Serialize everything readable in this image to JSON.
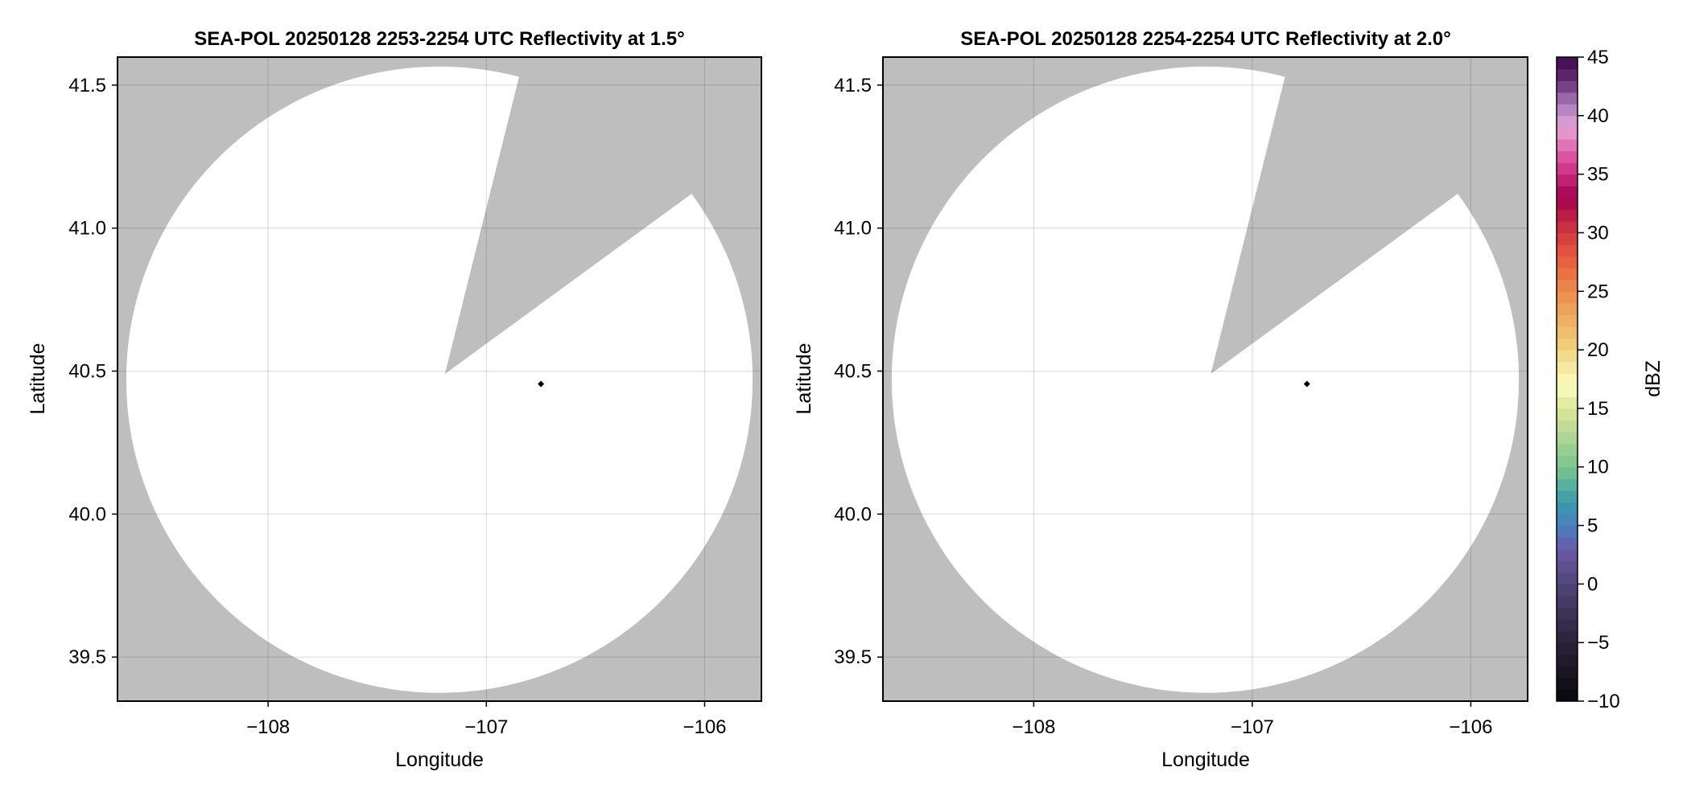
{
  "chart_data": [
    {
      "type": "heatmap",
      "title": "SEA-POL 20250128 2253-2254 UTC Reflectivity at 1.5°",
      "xlabel": "Longitude",
      "ylabel": "Latitude",
      "xlim": [
        -108.69,
        -105.74
      ],
      "ylim": [
        39.346,
        41.598
      ],
      "xticks": [
        -108,
        -107,
        -106
      ],
      "xtick_labels": [
        "−108",
        "−107",
        "−106"
      ],
      "yticks": [
        39.5,
        40.0,
        40.5,
        41.0,
        41.5
      ],
      "ytick_labels": [
        "39.5",
        "40.0",
        "40.5",
        "41.0",
        "41.5"
      ],
      "grid": true,
      "background_color": "#bebebe",
      "coverage_color": "#ffffff",
      "radar_center": [
        -107.2,
        40.47
      ],
      "coverage_extent_lon": [
        -108.65,
        -105.78
      ],
      "coverage_extent_lat": [
        39.375,
        41.565
      ],
      "blocked_sector": {
        "vertex": [
          -107.19,
          40.49
        ],
        "edge1": [
          -106.85,
          41.53
        ],
        "edge2": [
          -106.06,
          41.12
        ]
      },
      "marker": {
        "lon": -106.75,
        "lat": 40.455,
        "color": "#000000"
      }
    },
    {
      "type": "heatmap",
      "title": "SEA-POL 20250128 2254-2254 UTC Reflectivity at 2.0°",
      "xlabel": "Longitude",
      "ylabel": "Latitude",
      "xlim": [
        -108.69,
        -105.74
      ],
      "ylim": [
        39.346,
        41.598
      ],
      "xticks": [
        -108,
        -107,
        -106
      ],
      "xtick_labels": [
        "−108",
        "−107",
        "−106"
      ],
      "yticks": [
        39.5,
        40.0,
        40.5,
        41.0,
        41.5
      ],
      "ytick_labels": [
        "39.5",
        "40.0",
        "40.5",
        "41.0",
        "41.5"
      ],
      "grid": true,
      "background_color": "#bebebe",
      "coverage_color": "#ffffff",
      "radar_center": [
        -107.2,
        40.47
      ],
      "coverage_extent_lon": [
        -108.65,
        -105.78
      ],
      "coverage_extent_lat": [
        39.375,
        41.565
      ],
      "blocked_sector": {
        "vertex": [
          -107.19,
          40.49
        ],
        "edge1": [
          -106.85,
          41.53
        ],
        "edge2": [
          -106.06,
          41.12
        ]
      },
      "marker": {
        "lon": -106.75,
        "lat": 40.455,
        "color": "#000000"
      }
    }
  ],
  "colorbar": {
    "label": "dBZ",
    "range": [
      -10,
      45
    ],
    "step": 1,
    "ticks": [
      -10,
      -5,
      0,
      5,
      10,
      15,
      20,
      25,
      30,
      35,
      40,
      45
    ],
    "tick_labels": [
      "−10",
      "−5",
      "0",
      "5",
      "10",
      "15",
      "20",
      "25",
      "30",
      "35",
      "40",
      "45"
    ],
    "stops": [
      [
        -10,
        "#08070c"
      ],
      [
        -5,
        "#2a2238"
      ],
      [
        0,
        "#504479"
      ],
      [
        3,
        "#6a5aa8"
      ],
      [
        5,
        "#4a7fc0"
      ],
      [
        7,
        "#3a9aaa"
      ],
      [
        10,
        "#7cc48f"
      ],
      [
        15,
        "#dde69a"
      ],
      [
        17,
        "#fafcc0"
      ],
      [
        20,
        "#f0d480"
      ],
      [
        25,
        "#ec8c4c"
      ],
      [
        28,
        "#e55a3e"
      ],
      [
        31,
        "#c42844"
      ],
      [
        33,
        "#a3004f"
      ],
      [
        36,
        "#d84495"
      ],
      [
        39,
        "#e8a5d5"
      ],
      [
        41,
        "#a77bbb"
      ],
      [
        43,
        "#6a2d7a"
      ],
      [
        45,
        "#3a0a4a"
      ]
    ]
  }
}
